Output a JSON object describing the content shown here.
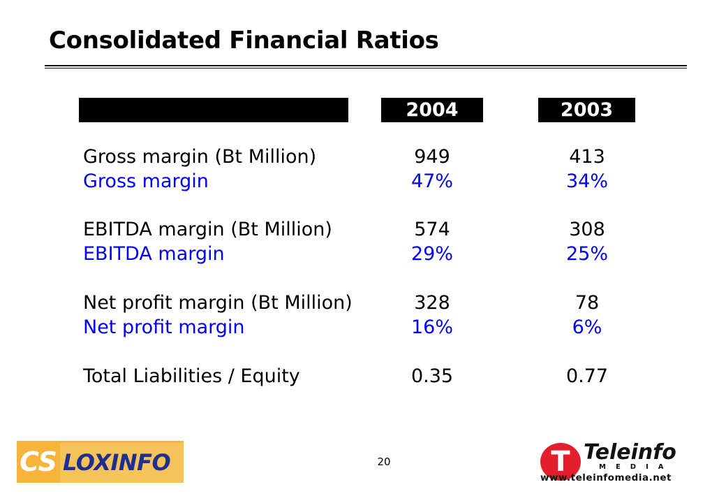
{
  "slide": {
    "title": "Consolidated Financial Ratios",
    "page_number": "20"
  },
  "table": {
    "columns": [
      "2004",
      "2003"
    ],
    "rows": [
      {
        "label": "Gross margin (Bt Million)",
        "v2004": "949",
        "v2003": "413",
        "color": "#000000"
      },
      {
        "label": "Gross margin",
        "v2004": "47%",
        "v2003": "34%",
        "color": "#0000ff"
      },
      {
        "label": "EBITDA margin (Bt Million)",
        "v2004": "574",
        "v2003": "308",
        "color": "#000000"
      },
      {
        "label": "EBITDA margin",
        "v2004": "29%",
        "v2003": "25%",
        "color": "#0000ff"
      },
      {
        "label": "Net profit margin (Bt Million)",
        "v2004": "328",
        "v2003": "78",
        "color": "#000000"
      },
      {
        "label": "Net profit margin",
        "v2004": "16%",
        "v2003": "6%",
        "color": "#0000ff"
      },
      {
        "label": "Total Liabilities / Equity",
        "v2004": "0.35",
        "v2003": "0.77",
        "color": "#000000"
      }
    ]
  },
  "logos": {
    "cs_loxinfo": {
      "left": "CS",
      "right": "LOXINFO"
    },
    "teleinfo": {
      "mark": "T",
      "name": "Teleinfo",
      "sub": "MEDIA",
      "url": "www.teleinfomedia.net"
    }
  }
}
